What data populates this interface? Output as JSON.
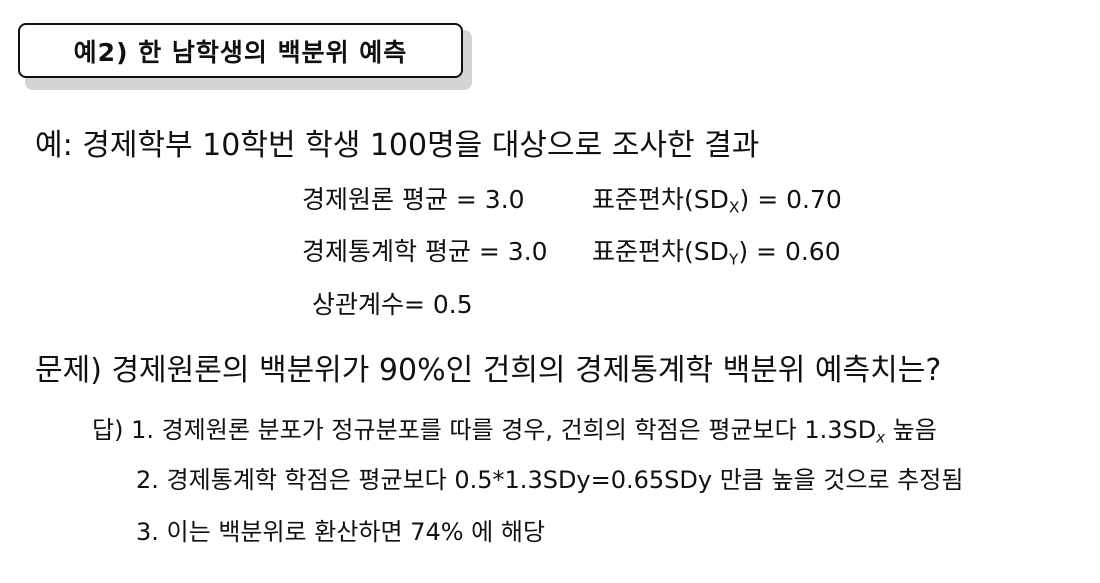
{
  "title": "예2) 한 남학생의 백분위 예측",
  "intro": "예: 경제학부 10학번 학생 100명을 대상으로 조사한 결과",
  "stats": {
    "econ_principles_mean": "경제원론 평균 = 3.0",
    "sd_x_prefix": "표준편차(SD",
    "sd_x_sub": "X",
    "sd_x_suffix": ") = 0.70",
    "econ_statistics_mean": "경제통계학 평균 = 3.0",
    "sd_y_prefix": "표준편차(SD",
    "sd_y_sub": "Y",
    "sd_y_suffix": ") = 0.60",
    "correlation": "상관계수= 0.5"
  },
  "question": "문제) 경제원론의 백분위가 90%인 건희의 경제통계학 백분위 예측치는?",
  "answers": {
    "a1_prefix": "답) 1. 경제원론 분포가 정규분포를 따를 경우, 건희의 학점은 평균보다 1.3SD",
    "a1_sub": "x",
    "a1_suffix": " 높음",
    "a2": "2. 경제통계학 학점은 평균보다 0.5*1.3SDy=0.65SDy 만큼 높을 것으로 추정됨",
    "a3": "3. 이는 백분위로 환산하면 74% 에 해당"
  }
}
